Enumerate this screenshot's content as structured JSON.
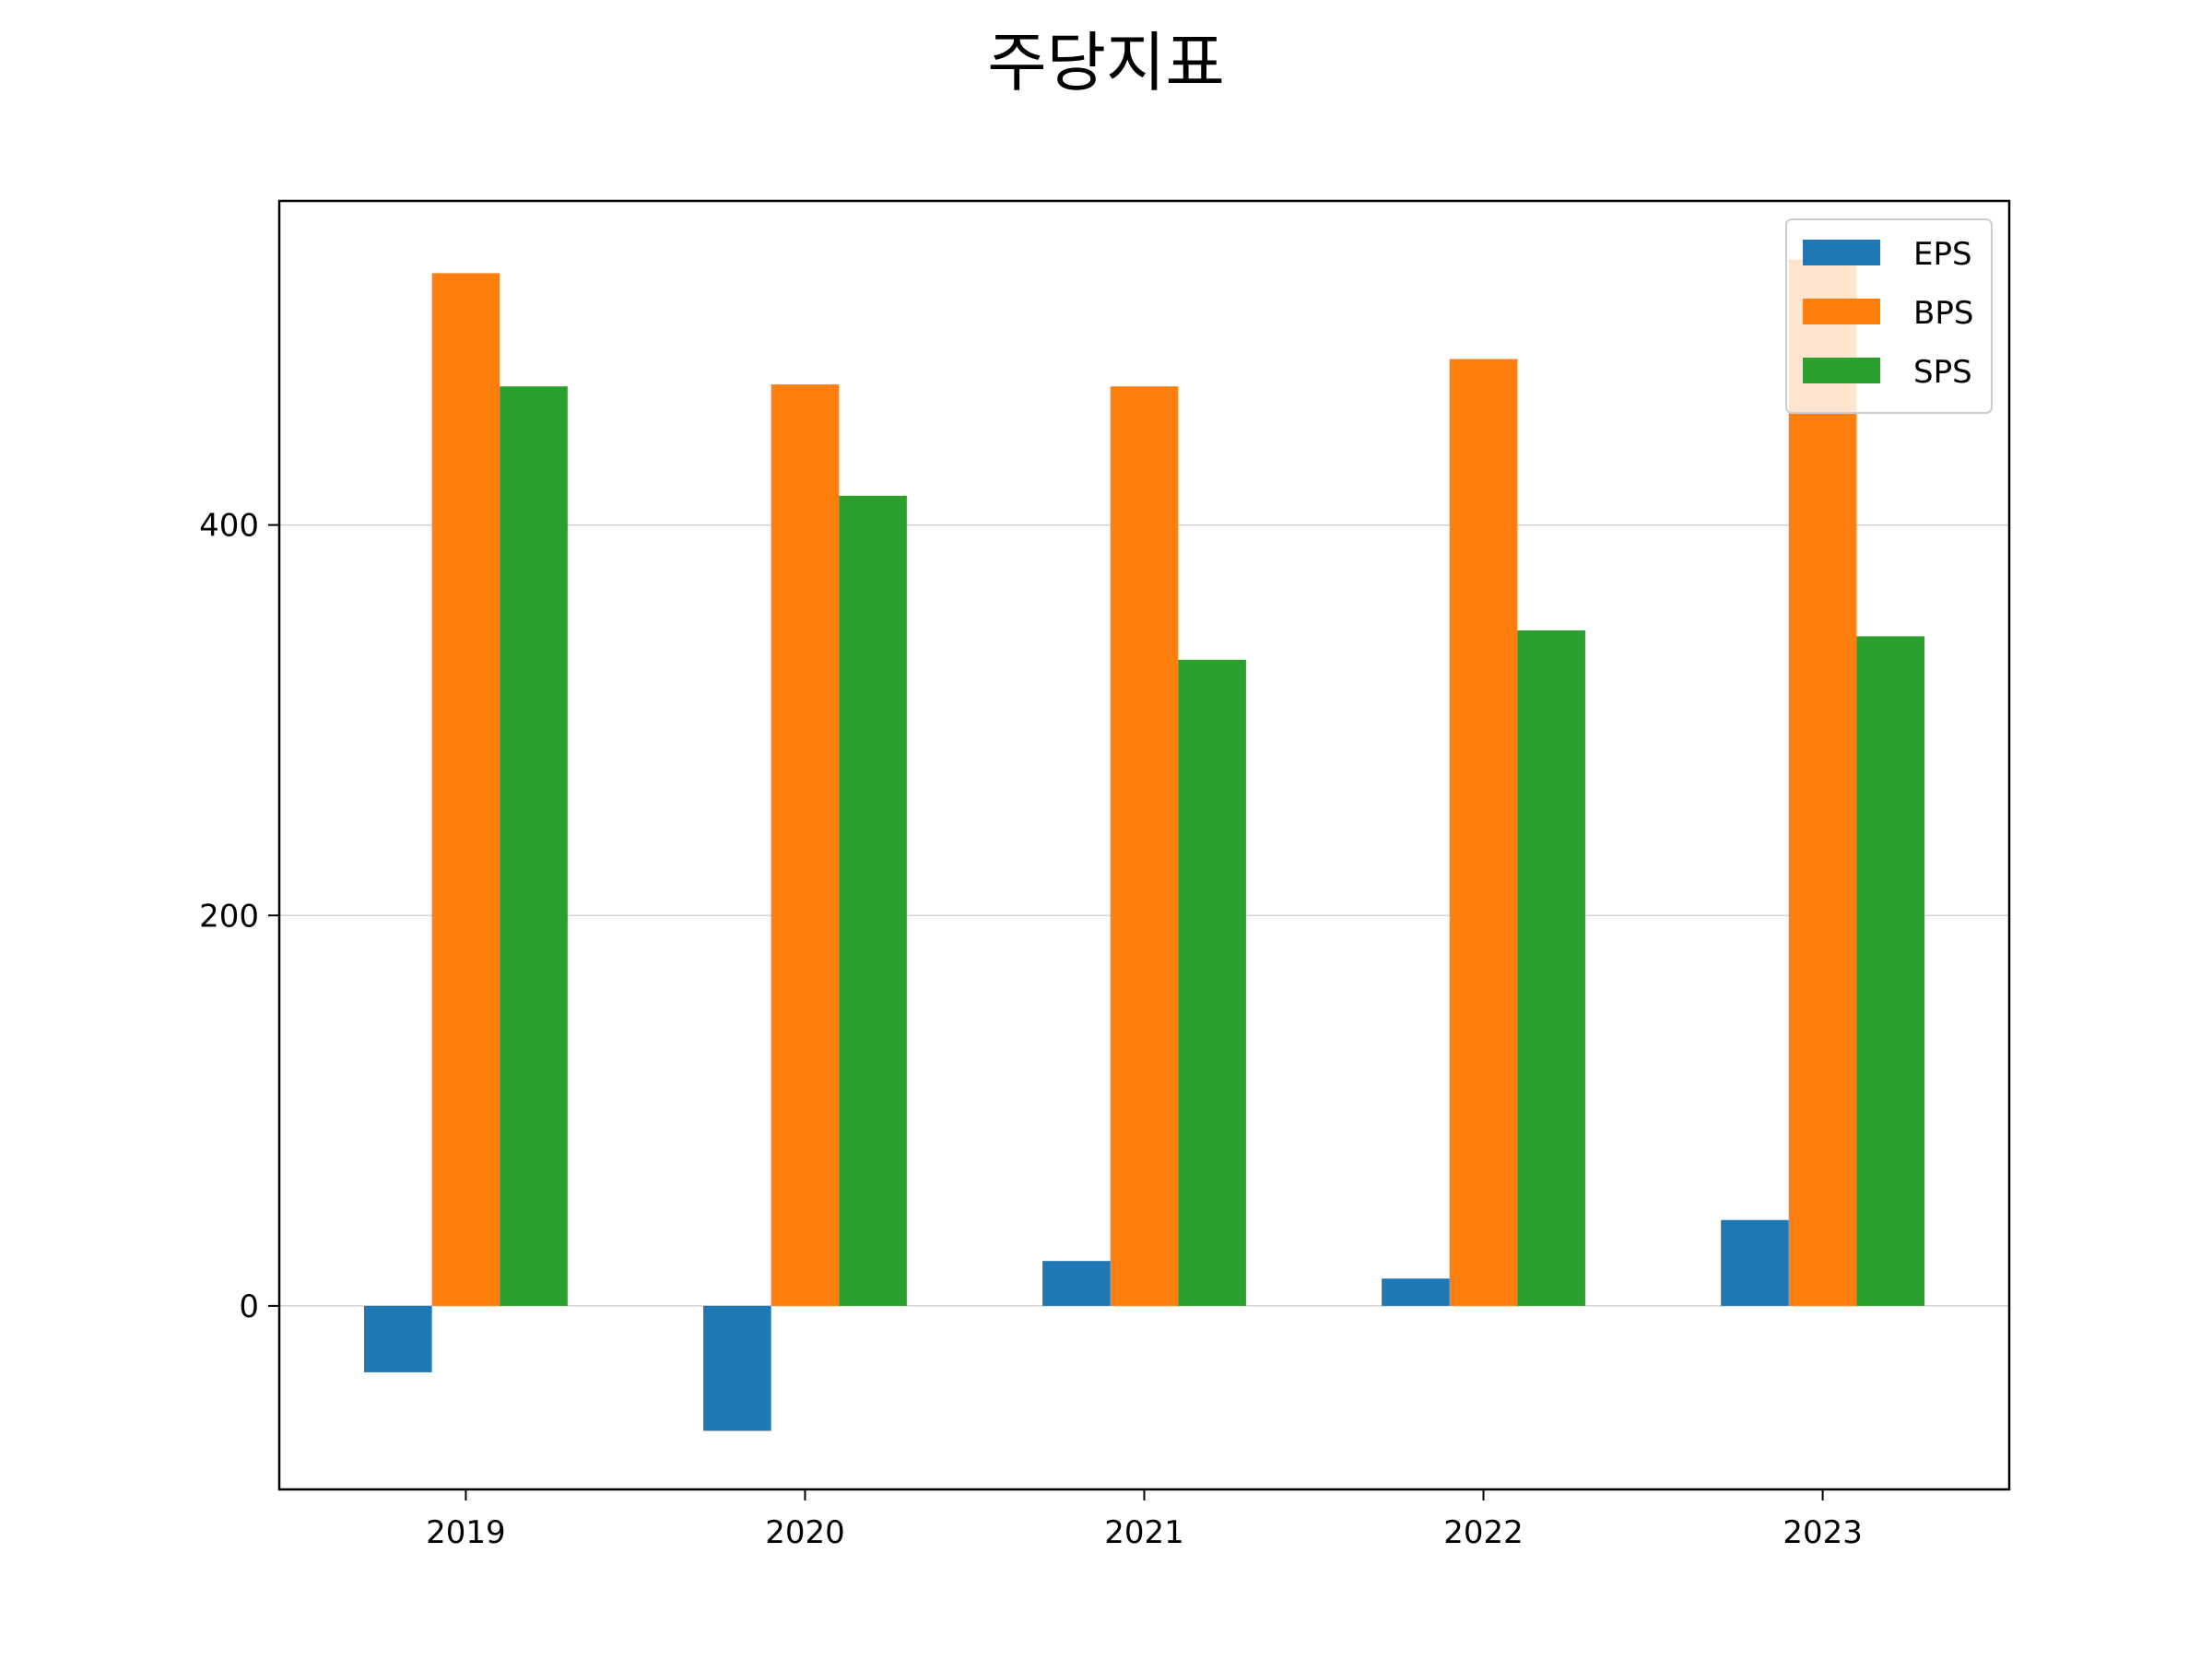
{
  "chart_data": {
    "type": "bar",
    "title": "주당지표",
    "xlabel": "",
    "ylabel": "",
    "categories": [
      "2019",
      "2020",
      "2021",
      "2022",
      "2023"
    ],
    "series": [
      {
        "name": "EPS",
        "color": "#1f77b4",
        "values": [
          -34,
          -64,
          23,
          14,
          44
        ]
      },
      {
        "name": "BPS",
        "color": "#ff7f0e",
        "values": [
          529,
          472,
          471,
          485,
          536
        ]
      },
      {
        "name": "SPS",
        "color": "#2ca02c",
        "values": [
          471,
          415,
          331,
          346,
          343
        ]
      }
    ],
    "yticks": [
      0,
      200,
      400
    ],
    "ylim": [
      -94,
      566
    ],
    "grid": "y",
    "legend": "top-right"
  }
}
